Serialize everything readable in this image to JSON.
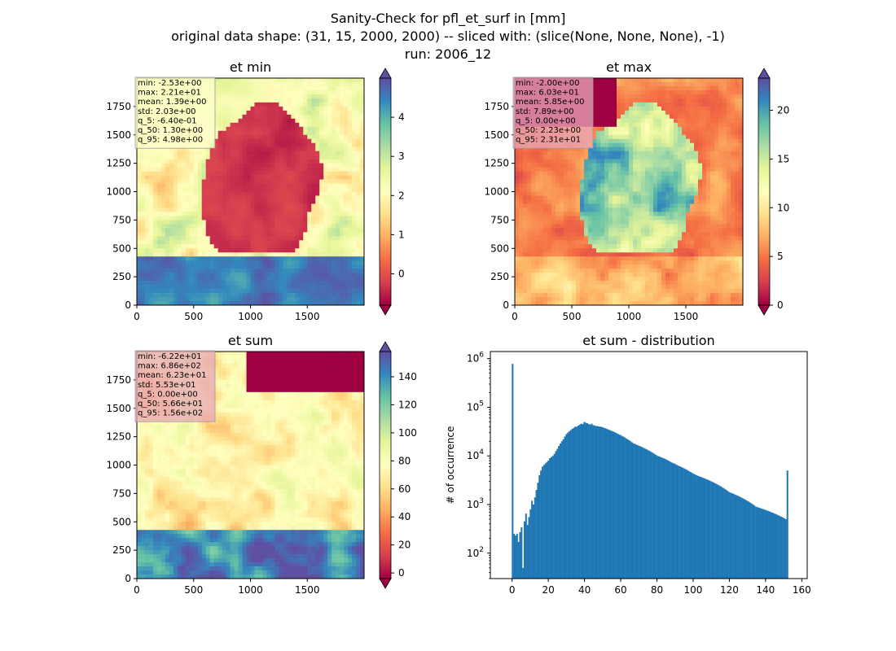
{
  "figure": {
    "title_lines": [
      "Sanity-Check for pfl_et_surf in [mm]",
      "original data shape: (31, 15, 2000, 2000) -- sliced with: (slice(None, None, None), -1)",
      "run: 2006_12"
    ]
  },
  "colormap": {
    "name": "Spectral",
    "stops": [
      "#9e0142",
      "#d53e4f",
      "#f46d43",
      "#fdae61",
      "#fee08b",
      "#ffffbf",
      "#e6f598",
      "#abdda4",
      "#66c2a5",
      "#3288bd",
      "#5e4fa2"
    ]
  },
  "chart_data": [
    {
      "type": "heatmap",
      "title": "et min",
      "x_ticks": [
        0,
        500,
        1000,
        1500
      ],
      "y_ticks": [
        0,
        250,
        500,
        750,
        1000,
        1250,
        1500,
        1750
      ],
      "xlim": [
        0,
        2000
      ],
      "ylim": [
        0,
        2000
      ],
      "colorbar": {
        "range": [
          -0.8,
          5.0
        ],
        "ticks": [
          0,
          1,
          2,
          3,
          4
        ],
        "extend": "both"
      },
      "stats": [
        "min: -2.53e+00",
        "max: 2.21e+01",
        "mean: 1.39e+00",
        "std: 2.03e+00",
        "q_5: -6.40e-01",
        "q_50: 1.30e+00",
        "q_95: 4.98e+00"
      ],
      "stats_box_color": "#ffffcc"
    },
    {
      "type": "heatmap",
      "title": "et max",
      "x_ticks": [
        0,
        500,
        1000,
        1500
      ],
      "y_ticks": [
        0,
        250,
        500,
        750,
        1000,
        1250,
        1500,
        1750
      ],
      "xlim": [
        0,
        2000
      ],
      "ylim": [
        0,
        2000
      ],
      "colorbar": {
        "range": [
          0,
          23.3
        ],
        "ticks": [
          0,
          5,
          10,
          15,
          20
        ],
        "extend": "both"
      },
      "stats": [
        "min: -2.00e+00",
        "max: 6.03e+01",
        "mean: 5.85e+00",
        "std: 7.89e+00",
        "q_5: 0.00e+00",
        "q_50: 2.23e+00",
        "q_95: 2.31e+01"
      ],
      "stats_box_color": "#e8a8b8"
    },
    {
      "type": "heatmap",
      "title": "et sum",
      "x_ticks": [
        0,
        500,
        1000,
        1500
      ],
      "y_ticks": [
        0,
        250,
        500,
        750,
        1000,
        1250,
        1500,
        1750
      ],
      "xlim": [
        0,
        2000
      ],
      "ylim": [
        0,
        2000
      ],
      "colorbar": {
        "range": [
          -4,
          158
        ],
        "ticks": [
          0,
          20,
          40,
          60,
          80,
          100,
          120,
          140
        ],
        "extend": "both"
      },
      "stats": [
        "min: -6.22e+01",
        "max: 6.86e+02",
        "mean: 6.23e+01",
        "std: 5.53e+01",
        "q_5: 0.00e+00",
        "q_50: 5.66e+01",
        "q_95: 1.56e+02"
      ],
      "stats_box_color": "#e8a8b8"
    },
    {
      "type": "bar",
      "title": "et sum - distribution",
      "ylabel": "# of occurrence",
      "xlim": [
        -12,
        163
      ],
      "x_ticks": [
        0,
        20,
        40,
        60,
        80,
        100,
        120,
        140,
        160
      ],
      "y_scale": "log",
      "ylim": [
        30,
        1400000
      ],
      "y_tick_exponents": [
        2,
        3,
        4,
        5,
        6
      ],
      "bar_color": "#1f77b4",
      "bin_start": -1,
      "bin_width": 0.825,
      "counts": [
        0,
        780000,
        250,
        230,
        250,
        170,
        270,
        340,
        50,
        450,
        650,
        380,
        550,
        800,
        1200,
        1000,
        1400,
        2000,
        2800,
        4000,
        5000,
        6000,
        6500,
        7000,
        7500,
        8000,
        9000,
        9500,
        10000,
        11000,
        12500,
        14000,
        16000,
        18000,
        20000,
        22000,
        25000,
        28000,
        30000,
        32000,
        34000,
        36000,
        38000,
        40000,
        40000,
        42000,
        44000,
        46000,
        45000,
        50000,
        48000,
        47000,
        45000,
        44000,
        46000,
        43000,
        42000,
        41000,
        41000,
        40000,
        40000,
        39000,
        38000,
        37000,
        36000,
        35000,
        34000,
        33000,
        32000,
        31000,
        30000,
        29000,
        28000,
        27000,
        26000,
        25000,
        24000,
        23000,
        22000,
        21000,
        20000,
        19000,
        18000,
        17500,
        17000,
        16500,
        16000,
        15500,
        15000,
        14500,
        14000,
        13500,
        13000,
        12500,
        12000,
        11500,
        11000,
        10500,
        10000,
        9800,
        9500,
        9200,
        9000,
        8700,
        8400,
        8100,
        7800,
        7500,
        7200,
        7000,
        6800,
        6500,
        6300,
        6100,
        5900,
        5700,
        5500,
        5300,
        5100,
        4900,
        4700,
        4500,
        4300,
        4200,
        4000,
        3900,
        3800,
        3700,
        3600,
        3500,
        3400,
        3300,
        3200,
        3100,
        3000,
        2900,
        2800,
        2700,
        2600,
        2500,
        2400,
        2300,
        2200,
        2100,
        2000,
        1900,
        1800,
        1750,
        1700,
        1650,
        1600,
        1550,
        1500,
        1450,
        1400,
        1350,
        1300,
        1250,
        1200,
        1150,
        1100,
        1050,
        1000,
        950,
        900,
        880,
        860,
        840,
        820,
        800,
        780,
        760,
        740,
        720,
        700,
        680,
        660,
        640,
        620,
        600,
        580,
        560,
        540,
        520,
        500,
        5000
      ]
    }
  ]
}
